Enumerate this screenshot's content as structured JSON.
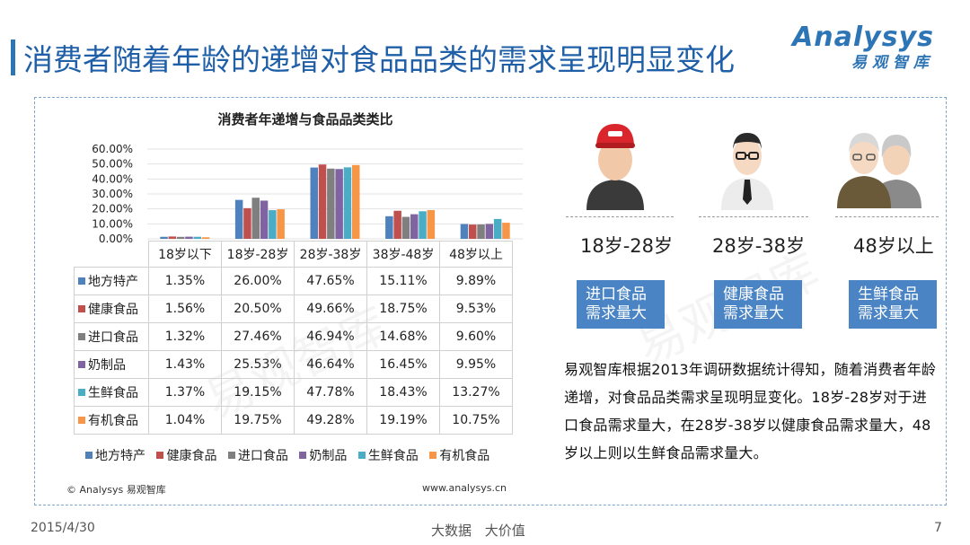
{
  "header": {
    "title": "消费者随着年龄的递增对食品品类的需求呈现明显变化",
    "logo_main": "Analysys",
    "logo_sub": "易观智库"
  },
  "chart_data": {
    "type": "bar",
    "title": "消费者年递增与食品品类类比",
    "categories": [
      "18岁以下",
      "18岁-28岁",
      "28岁-38岁",
      "38岁-48岁",
      "48岁以上"
    ],
    "series": [
      {
        "name": "地方特产",
        "color": "#4f81bd",
        "values": [
          "1.35%",
          "26.00%",
          "47.65%",
          "15.11%",
          "9.89%"
        ],
        "nums": [
          1.35,
          26.0,
          47.65,
          15.11,
          9.89
        ]
      },
      {
        "name": "健康食品",
        "color": "#c0504d",
        "values": [
          "1.56%",
          "20.50%",
          "49.66%",
          "18.75%",
          "9.53%"
        ],
        "nums": [
          1.56,
          20.5,
          49.66,
          18.75,
          9.53
        ]
      },
      {
        "name": "进口食品",
        "color": "#7f7f7f",
        "values": [
          "1.32%",
          "27.46%",
          "46.94%",
          "14.68%",
          "9.60%"
        ],
        "nums": [
          1.32,
          27.46,
          46.94,
          14.68,
          9.6
        ]
      },
      {
        "name": "奶制品",
        "color": "#8064a2",
        "values": [
          "1.43%",
          "25.53%",
          "46.64%",
          "16.45%",
          "9.95%"
        ],
        "nums": [
          1.43,
          25.53,
          46.64,
          16.45,
          9.95
        ]
      },
      {
        "name": "生鲜食品",
        "color": "#4bacc6",
        "values": [
          "1.37%",
          "19.15%",
          "47.78%",
          "18.43%",
          "13.27%"
        ],
        "nums": [
          1.37,
          19.15,
          47.78,
          18.43,
          13.27
        ]
      },
      {
        "name": "有机食品",
        "color": "#f79646",
        "values": [
          "1.04%",
          "19.75%",
          "49.28%",
          "19.19%",
          "10.75%"
        ],
        "nums": [
          1.04,
          19.75,
          49.28,
          19.19,
          10.75
        ]
      }
    ],
    "y_ticks": [
      "60.00%",
      "50.00%",
      "40.00%",
      "30.00%",
      "20.00%",
      "10.00%",
      "0.00%"
    ],
    "ylim": [
      0,
      60
    ],
    "grid": true,
    "legend": "bottom"
  },
  "chart_footer": {
    "copyright": "© Analysys 易观智库",
    "url": "www.analysys.cn"
  },
  "personas": [
    {
      "age": "18岁-28岁",
      "demand": [
        "进口食品",
        "需求量大"
      ],
      "icon": "young-man-icon"
    },
    {
      "age": "28岁-38岁",
      "demand": [
        "健康食品",
        "需求量大"
      ],
      "icon": "businessman-icon"
    },
    {
      "age": "48岁以上",
      "demand": [
        "生鲜食品",
        "需求量大"
      ],
      "icon": "elderly-couple-icon"
    }
  ],
  "description": "易观智库根据2013年调研数据统计得知，随着消费者年龄递增，对食品品类需求呈现明显变化。18岁-28岁对于进口食品需求量大，在28岁-38岁以健康食品需求量大，48岁以上则以生鲜食品需求量大。",
  "footer": {
    "date": "2015/4/30",
    "center": "大数据 大价值",
    "page": "7"
  },
  "watermark": "易观智库"
}
